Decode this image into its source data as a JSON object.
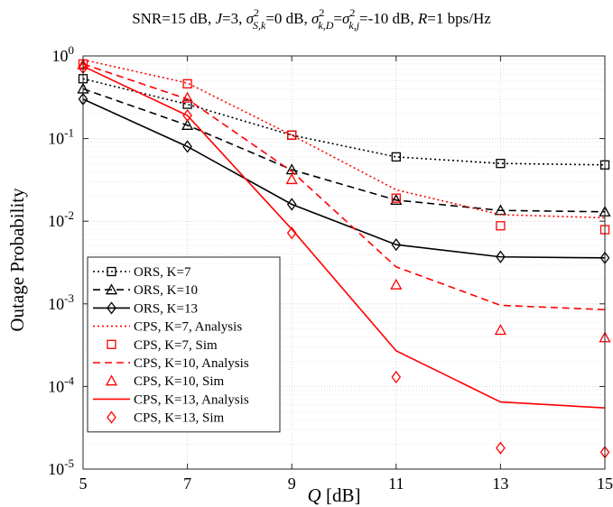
{
  "chart_data": {
    "type": "line",
    "title": "SNR=15 dB, J=3, σ²S,k=0 dB, σ²k,D=σ²k,j=-10 dB, R=1 bps/Hz",
    "title_parts": {
      "p1": "SNR=15 dB, ",
      "j": "J",
      "p2": "=3, ",
      "s1": "σ",
      "sup1": "2",
      "sub1": "S,k",
      "p3": "=0 dB, ",
      "s2": "σ",
      "sup2": "2",
      "sub2": "k,D",
      "p4": "=",
      "s3": "σ",
      "sup3": "2",
      "sub3": "k,j",
      "p5": "=-10 dB, ",
      "r": "R",
      "p6": "=1 bps/Hz"
    },
    "xlabel": "Q [dB]",
    "xlabel_parts": {
      "var": "Q",
      "unit": " [dB]"
    },
    "ylabel": "Outage Probability",
    "xlim": [
      5,
      15
    ],
    "ylim": [
      1e-05,
      1
    ],
    "yscale": "log",
    "grid": true,
    "legend_position": "bottom-left",
    "xticks": [
      "5",
      "7",
      "9",
      "11",
      "13",
      "15"
    ],
    "yticks": [
      {
        "base": "10",
        "exp": "0"
      },
      {
        "base": "10",
        "exp": "-1"
      },
      {
        "base": "10",
        "exp": "-2"
      },
      {
        "base": "10",
        "exp": "-3"
      },
      {
        "base": "10",
        "exp": "-4"
      },
      {
        "base": "10",
        "exp": "-5"
      }
    ],
    "x": [
      5,
      7,
      9,
      11,
      13,
      15
    ],
    "series": [
      {
        "name": "ORS, K=7",
        "color": "#000000",
        "dash": "dotted",
        "marker": "square",
        "show_line": true,
        "values": [
          0.53,
          0.26,
          0.11,
          0.06,
          0.05,
          0.048
        ]
      },
      {
        "name": "ORS, K=10",
        "color": "#000000",
        "dash": "dashed",
        "marker": "triangle",
        "show_line": true,
        "values": [
          0.4,
          0.145,
          0.042,
          0.018,
          0.0135,
          0.013
        ]
      },
      {
        "name": "ORS, K=13",
        "color": "#000000",
        "dash": "solid",
        "marker": "diamond",
        "show_line": true,
        "values": [
          0.3,
          0.08,
          0.016,
          0.0052,
          0.0037,
          0.0036
        ]
      },
      {
        "name": "CPS, K=7, Analysis",
        "color": "#ff0000",
        "dash": "dotted",
        "marker": "none",
        "show_line": true,
        "values": [
          0.9,
          0.47,
          0.11,
          0.024,
          0.012,
          0.011
        ]
      },
      {
        "name": "CPS, K=7, Sim",
        "color": "#ff0000",
        "dash": "none",
        "marker": "square",
        "show_line": false,
        "values": [
          0.8,
          0.46,
          0.11,
          0.019,
          0.0088,
          0.0079
        ]
      },
      {
        "name": "CPS, K=10, Analysis",
        "color": "#ff0000",
        "dash": "dashed",
        "marker": "none",
        "show_line": true,
        "values": [
          0.8,
          0.3,
          0.04,
          0.0028,
          0.00096,
          0.00085
        ]
      },
      {
        "name": "CPS, K=10, Sim",
        "color": "#ff0000",
        "dash": "none",
        "marker": "triangle",
        "show_line": false,
        "values": [
          0.78,
          0.31,
          0.032,
          0.0017,
          0.00048,
          0.00039
        ]
      },
      {
        "name": "CPS, K=13, Analysis",
        "color": "#ff0000",
        "dash": "solid",
        "marker": "none",
        "show_line": true,
        "values": [
          0.75,
          0.19,
          0.008,
          0.00027,
          6.5e-05,
          5.5e-05
        ]
      },
      {
        "name": "CPS, K=13, Sim",
        "color": "#ff0000",
        "dash": "none",
        "marker": "diamond",
        "show_line": false,
        "values": [
          0.72,
          0.19,
          0.0072,
          0.00013,
          1.8e-05,
          1.6e-05
        ]
      }
    ]
  }
}
